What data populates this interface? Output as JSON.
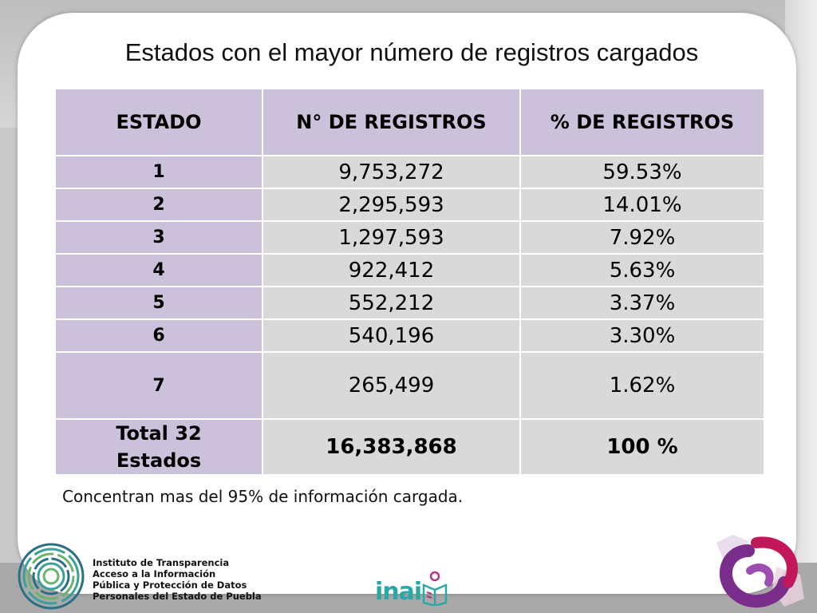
{
  "slide": {
    "title": "Estados con el mayor número de registros cargados",
    "footnote": "Concentran mas del 95% de información cargada."
  },
  "table": {
    "headers": [
      "ESTADO",
      "N° DE REGISTROS",
      "% DE REGISTROS"
    ],
    "rows": [
      {
        "estado": "1",
        "registros": "9,753,272",
        "porcentaje": "59.53%"
      },
      {
        "estado": "2",
        "registros": "2,295,593",
        "porcentaje": "14.01%"
      },
      {
        "estado": "3",
        "registros": "1,297,593",
        "porcentaje": "7.92%"
      },
      {
        "estado": "4",
        "registros": "922,412",
        "porcentaje": "5.63%"
      },
      {
        "estado": "5",
        "registros": "552,212",
        "porcentaje": "3.37%"
      },
      {
        "estado": "6",
        "registros": "540,196",
        "porcentaje": "3.30%"
      },
      {
        "estado": "7",
        "registros": "265,499",
        "porcentaje": "1.62%"
      }
    ],
    "total": {
      "estado_line1": "Total 32",
      "estado_line2": "Estados",
      "registros": "16,383,868",
      "porcentaje": "100 %"
    }
  },
  "footer": {
    "org_lines": [
      "Instituto de Transparencia",
      "Acceso a la Información",
      "Pública y Protección de Datos",
      "Personales del Estado de Puebla"
    ],
    "inai_label": "inai",
    "icons": {
      "org_logo": "concentric-circles-logo-icon",
      "inai_logo": "inai-book-person-icon",
      "right_logo": "puebla-map-swirl-logo-icon"
    },
    "colors": {
      "header_purple": "#ccc1da",
      "cell_gray": "#d9d9d9",
      "inai_teal": "#2aa7a7",
      "logo_purple": "#7b2d8b",
      "logo_magenta": "#c2185b"
    }
  }
}
